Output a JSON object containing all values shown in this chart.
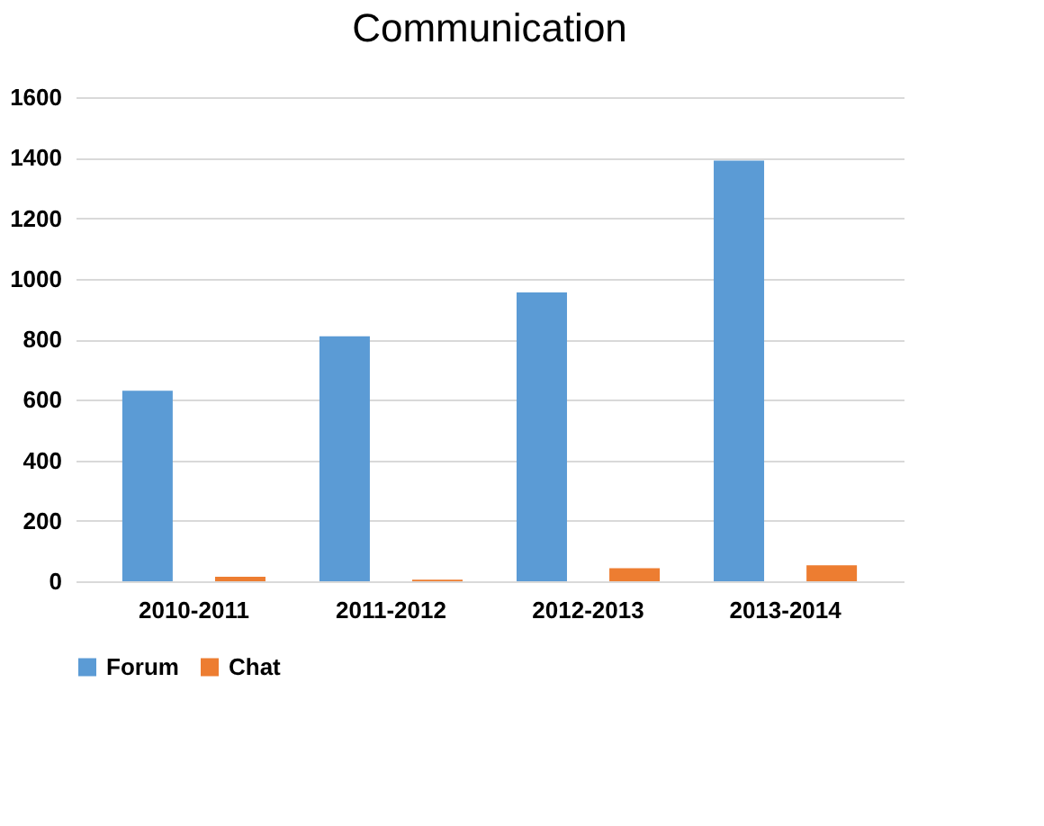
{
  "chart_data": {
    "type": "bar",
    "title": "Communication",
    "categories": [
      "2010-2011",
      "2011-2012",
      "2012-2013",
      "2013-2014"
    ],
    "series": [
      {
        "name": "Forum",
        "color": "#5b9bd5",
        "values": [
          630,
          810,
          955,
          1390
        ]
      },
      {
        "name": "Chat",
        "color": "#ed7d31",
        "values": [
          15,
          5,
          43,
          53
        ]
      }
    ],
    "ylim": [
      0,
      1600
    ],
    "yticks": [
      0,
      200,
      400,
      600,
      800,
      1000,
      1200,
      1400,
      1600
    ],
    "grid": "y",
    "legend": "bottom"
  }
}
